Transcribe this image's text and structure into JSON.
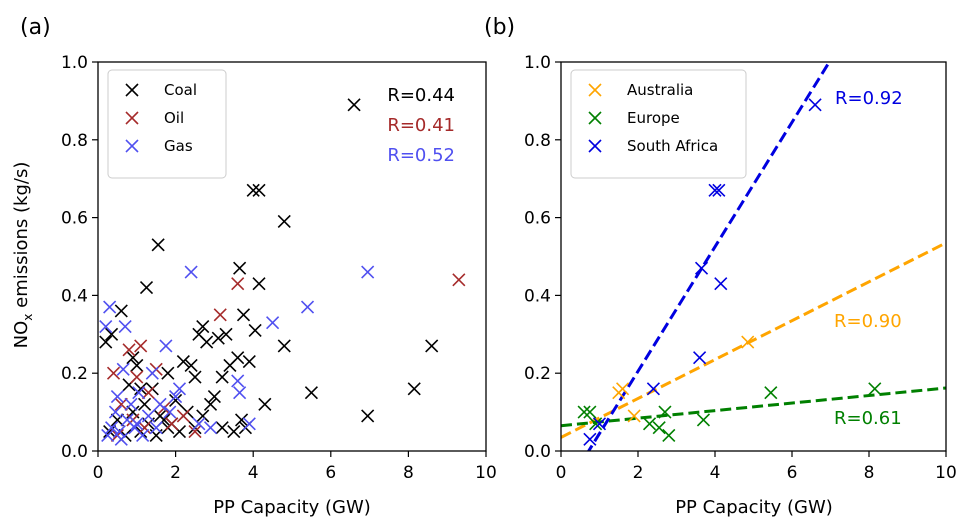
{
  "chart_data": [
    {
      "type": "scatter",
      "panel_label": "(a)",
      "xlabel": "PP Capacity (GW)",
      "ylabel_main": "NO",
      "ylabel_sub": "x",
      "ylabel_tail": " emissions (kg/s)",
      "xlim": [
        0,
        10
      ],
      "ylim": [
        0,
        1.0
      ],
      "x_ticks": [
        "0",
        "2",
        "4",
        "6",
        "8",
        "10"
      ],
      "y_ticks": [
        "0.0",
        "0.2",
        "0.4",
        "0.6",
        "0.8",
        "1.0"
      ],
      "legend_position": "top-left",
      "series": [
        {
          "name": "Coal",
          "color": "#000000",
          "marker": "x",
          "points": [
            [
              0.2,
              0.28
            ],
            [
              0.35,
              0.3
            ],
            [
              0.6,
              0.36
            ],
            [
              0.8,
              0.17
            ],
            [
              0.9,
              0.24
            ],
            [
              1.0,
              0.22
            ],
            [
              1.1,
              0.16
            ],
            [
              1.2,
              0.12
            ],
            [
              1.25,
              0.42
            ],
            [
              1.4,
              0.16
            ],
            [
              1.55,
              0.53
            ],
            [
              1.6,
              0.09
            ],
            [
              1.7,
              0.08
            ],
            [
              1.8,
              0.06
            ],
            [
              2.0,
              0.13
            ],
            [
              2.2,
              0.23
            ],
            [
              2.3,
              0.1
            ],
            [
              2.4,
              0.22
            ],
            [
              2.5,
              0.19
            ],
            [
              2.6,
              0.3
            ],
            [
              2.7,
              0.32
            ],
            [
              2.8,
              0.28
            ],
            [
              3.0,
              0.14
            ],
            [
              3.1,
              0.29
            ],
            [
              3.2,
              0.19
            ],
            [
              3.3,
              0.3
            ],
            [
              3.4,
              0.22
            ],
            [
              3.5,
              0.05
            ],
            [
              3.6,
              0.24
            ],
            [
              3.65,
              0.47
            ],
            [
              3.7,
              0.08
            ],
            [
              3.75,
              0.35
            ],
            [
              3.8,
              0.06
            ],
            [
              3.9,
              0.23
            ],
            [
              4.0,
              0.67
            ],
            [
              4.05,
              0.31
            ],
            [
              4.15,
              0.67
            ],
            [
              4.15,
              0.43
            ],
            [
              4.3,
              0.12
            ],
            [
              4.8,
              0.59
            ],
            [
              4.8,
              0.27
            ],
            [
              5.5,
              0.15
            ],
            [
              6.6,
              0.89
            ],
            [
              6.95,
              0.09
            ],
            [
              8.15,
              0.16
            ],
            [
              8.6,
              0.27
            ],
            [
              0.3,
              0.05
            ],
            [
              0.5,
              0.08
            ],
            [
              0.7,
              0.04
            ],
            [
              0.9,
              0.1
            ],
            [
              1.1,
              0.05
            ],
            [
              1.3,
              0.07
            ],
            [
              1.5,
              0.04
            ],
            [
              1.9,
              0.07
            ],
            [
              2.1,
              0.05
            ],
            [
              2.5,
              0.06
            ],
            [
              2.7,
              0.09
            ],
            [
              3.2,
              0.06
            ],
            [
              1.8,
              0.2
            ],
            [
              2.9,
              0.12
            ]
          ]
        },
        {
          "name": "Oil",
          "color": "#a52a2a",
          "marker": "x",
          "points": [
            [
              0.4,
              0.2
            ],
            [
              0.6,
              0.12
            ],
            [
              0.8,
              0.26
            ],
            [
              0.9,
              0.08
            ],
            [
              1.0,
              0.19
            ],
            [
              1.1,
              0.27
            ],
            [
              1.3,
              0.15
            ],
            [
              1.5,
              0.21
            ],
            [
              1.7,
              0.11
            ],
            [
              1.9,
              0.07
            ],
            [
              2.2,
              0.09
            ],
            [
              2.5,
              0.05
            ],
            [
              3.15,
              0.35
            ],
            [
              3.6,
              0.43
            ],
            [
              9.3,
              0.44
            ],
            [
              0.5,
              0.04
            ],
            [
              1.2,
              0.06
            ]
          ]
        },
        {
          "name": "Gas",
          "color": "#5050f0",
          "marker": "x",
          "points": [
            [
              0.2,
              0.32
            ],
            [
              0.3,
              0.37
            ],
            [
              0.35,
              0.06
            ],
            [
              0.45,
              0.1
            ],
            [
              0.5,
              0.14
            ],
            [
              0.55,
              0.05
            ],
            [
              0.65,
              0.21
            ],
            [
              0.7,
              0.32
            ],
            [
              0.75,
              0.08
            ],
            [
              0.85,
              0.12
            ],
            [
              0.95,
              0.06
            ],
            [
              1.05,
              0.15
            ],
            [
              1.15,
              0.04
            ],
            [
              1.3,
              0.09
            ],
            [
              1.4,
              0.2
            ],
            [
              1.5,
              0.06
            ],
            [
              1.6,
              0.12
            ],
            [
              1.75,
              0.27
            ],
            [
              1.85,
              0.1
            ],
            [
              2.0,
              0.14
            ],
            [
              2.1,
              0.16
            ],
            [
              2.4,
              0.46
            ],
            [
              2.6,
              0.07
            ],
            [
              2.9,
              0.06
            ],
            [
              3.6,
              0.18
            ],
            [
              3.65,
              0.15
            ],
            [
              3.9,
              0.07
            ],
            [
              4.5,
              0.33
            ],
            [
              5.4,
              0.37
            ],
            [
              6.95,
              0.46
            ],
            [
              0.25,
              0.04
            ],
            [
              0.6,
              0.03
            ],
            [
              1.0,
              0.07
            ]
          ]
        }
      ],
      "annotations": [
        {
          "text": "R=0.44",
          "color": "#000000"
        },
        {
          "text": "R=0.41",
          "color": "#a52a2a"
        },
        {
          "text": "R=0.52",
          "color": "#5050f0"
        }
      ]
    },
    {
      "type": "scatter",
      "panel_label": "(b)",
      "xlabel": "PP Capacity (GW)",
      "xlim": [
        0,
        10
      ],
      "ylim": [
        0,
        1.0
      ],
      "x_ticks": [
        "0",
        "2",
        "4",
        "6",
        "8",
        "10"
      ],
      "y_ticks": [
        "0.0",
        "0.2",
        "0.4",
        "0.6",
        "0.8",
        "1.0"
      ],
      "legend_position": "top-left",
      "series": [
        {
          "name": "Australia",
          "color": "#ffa500",
          "marker": "x",
          "points": [
            [
              1.5,
              0.15
            ],
            [
              1.6,
              0.16
            ],
            [
              1.9,
              0.09
            ],
            [
              4.85,
              0.28
            ]
          ],
          "fit": {
            "intercept": 0.035,
            "slope": 0.05,
            "label": "R=0.90"
          }
        },
        {
          "name": "Europe",
          "color": "#008000",
          "marker": "x",
          "points": [
            [
              0.6,
              0.1
            ],
            [
              0.75,
              0.1
            ],
            [
              2.3,
              0.07
            ],
            [
              2.55,
              0.06
            ],
            [
              2.7,
              0.1
            ],
            [
              2.8,
              0.04
            ],
            [
              3.7,
              0.08
            ],
            [
              5.45,
              0.15
            ],
            [
              8.15,
              0.16
            ],
            [
              0.9,
              0.07
            ]
          ],
          "fit": {
            "intercept": 0.065,
            "slope": 0.0097,
            "label": "R=0.61"
          }
        },
        {
          "name": "South Africa",
          "color": "#0000e0",
          "marker": "x",
          "points": [
            [
              0.75,
              0.03
            ],
            [
              1.0,
              0.07
            ],
            [
              2.4,
              0.16
            ],
            [
              3.6,
              0.24
            ],
            [
              3.65,
              0.47
            ],
            [
              4.0,
              0.67
            ],
            [
              4.1,
              0.67
            ],
            [
              4.15,
              0.43
            ],
            [
              6.6,
              0.89
            ]
          ],
          "fit": {
            "intercept": -0.115,
            "slope": 0.16,
            "label": "R=0.92"
          }
        }
      ]
    }
  ]
}
